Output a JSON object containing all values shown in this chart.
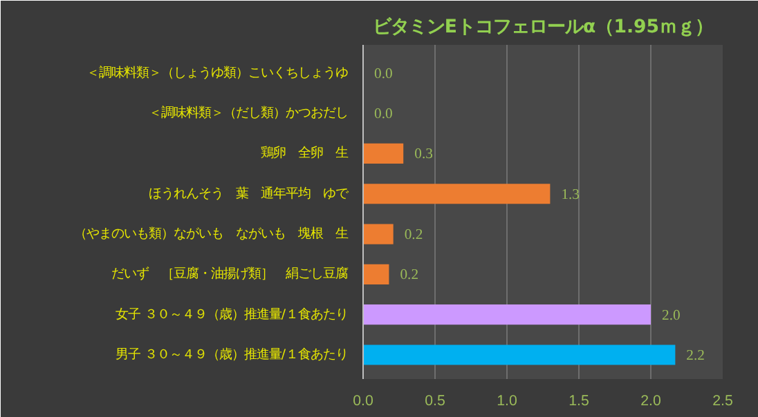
{
  "chart_data": {
    "type": "bar",
    "orientation": "horizontal",
    "title": "ビタミンEトコフェロールα（1.95ｍｇ）",
    "categories": [
      "＜調味料類＞（しょうゆ類）こいくちしょうゆ",
      "＜調味料類＞（だし類）かつおだし",
      "鶏卵　全卵　生",
      "ほうれんそう　葉　通年平均　ゆで",
      "（やまのいも類）ながいも　ながいも　塊根　生",
      "だいず　［豆腐・油揚げ類］　絹ごし豆腐",
      "女子 ３０～４９（歳）推進量/１食あたり",
      "男子 ３０～４９（歳）推進量/１食あたり"
    ],
    "values": [
      0,
      0,
      0.28,
      1.3,
      0.21,
      0.18,
      2.0,
      2.17
    ],
    "colors": [
      "#ed7d31",
      "#ed7d31",
      "#ed7d31",
      "#ed7d31",
      "#ed7d31",
      "#ed7d31",
      "#cc99ff",
      "#00b0f0"
    ],
    "value_labels": [
      "0.0",
      "0.0",
      "0.3",
      "1.3",
      "0.2",
      "0.2",
      "2.0",
      "2.2"
    ],
    "xlim": [
      0,
      2.5
    ],
    "xticks": [
      "0.0",
      "0.5",
      "1.0",
      "1.5",
      "2.0",
      "2.5"
    ],
    "grid": "x"
  }
}
